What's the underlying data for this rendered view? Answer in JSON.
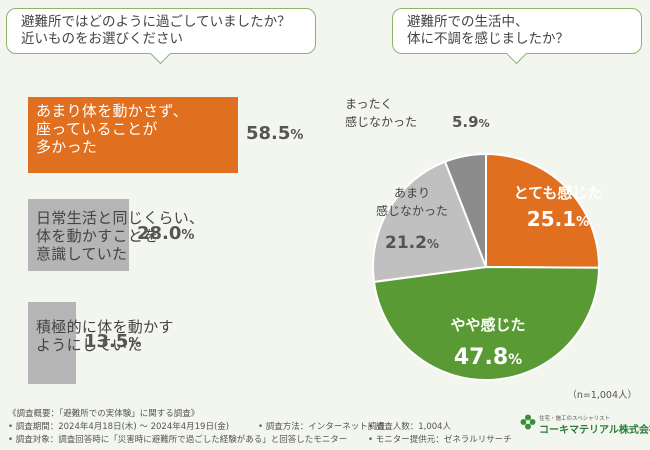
{
  "questions": {
    "q1": {
      "line1": "避難所ではどのように過ごしていましたか？",
      "line2": "近いものをお選びください"
    },
    "q2": {
      "line1": "避難所での生活中、",
      "line2": "体に不調を感じましたか？"
    }
  },
  "bar_chart": {
    "type": "bar",
    "orientation": "horizontal",
    "categories": [
      "あまり体を動かさず、座っていることが多かった",
      "日常生活と同じくらい、体を動かすことを意識していた",
      "積極的に体を動かすようにしていた"
    ],
    "label_lines": [
      [
        "あまり体を動かさず、",
        "座っていることが",
        "多かった"
      ],
      [
        "日常生活と同じくらい、",
        "体を動かすことを",
        "意識していた"
      ],
      [
        "積極的に体を動かす",
        "ようにしていた"
      ]
    ],
    "values": [
      58.5,
      28.0,
      13.5
    ],
    "value_labels": [
      "58.5",
      "28.0",
      "13.5"
    ],
    "unit": "%",
    "colors": [
      "#e06f1f",
      "#b5b5b5",
      "#b5b5b5"
    ]
  },
  "chart_data": {
    "type": "pie",
    "categories": [
      "とても感じた",
      "やや感じた",
      "あまり感じなかった",
      "まったく感じなかった"
    ],
    "values": [
      25.1,
      47.8,
      21.2,
      5.9
    ],
    "value_labels": [
      "25.1",
      "47.8",
      "21.2",
      "5.9"
    ],
    "unit": "%",
    "colors": [
      "#e06f1f",
      "#5a9a34",
      "#c0c0c0",
      "#8c8c8c"
    ],
    "slice_label_lines": [
      [
        "とても感じた"
      ],
      [
        "やや感じた"
      ],
      [
        "あまり",
        "感じなかった"
      ],
      [
        "まったく",
        "感じなかった"
      ]
    ],
    "sample_size": "（n=1,004人）"
  },
  "footer": {
    "overview": "《調査概要：「避難所での実体験」に関する調査》",
    "period": "• 調査期間：2024年4月18日(木) ～ 2024年4月19日(金)",
    "method": "• 調査方法：インターネット調査",
    "people": "• 調査人数：1,004人",
    "target": "• 調査対象：調査回答時に「災害時に避難所で過ごした経験がある」と回答したモニター",
    "provider": "• モニター提供元：ゼネラルリサーチ"
  },
  "logo": {
    "sub": "住宅・施工のスペシャリスト",
    "main": "コーキマテリアル株式会社"
  }
}
